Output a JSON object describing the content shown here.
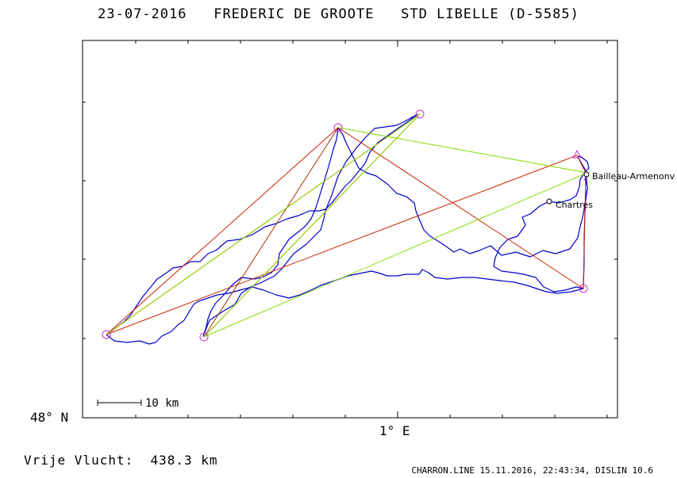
{
  "header": {
    "date": "23-07-2016",
    "pilot": "FREDERIC DE GROOTE",
    "glider": "STD LIBELLE (D-5585)"
  },
  "axes": {
    "y_tick_label": "48° N",
    "x_tick_label": "1° E",
    "scale_bar_label": "10 km"
  },
  "places": [
    {
      "name": "Bailleau-Armenonv"
    },
    {
      "name": "Chartres"
    }
  ],
  "footer": {
    "distance_label": "Vrije Vlucht:",
    "distance_value": "438.3 km",
    "software": "CHARRON.LINE 15.11.2016, 22:43:34, DISLIN 10.6"
  },
  "colors": {
    "track": "#0000cc",
    "task_line": "#cc2200",
    "optimized_line": "#88dd00",
    "turnpoint": "#cc33cc",
    "frame": "#000000"
  }
}
